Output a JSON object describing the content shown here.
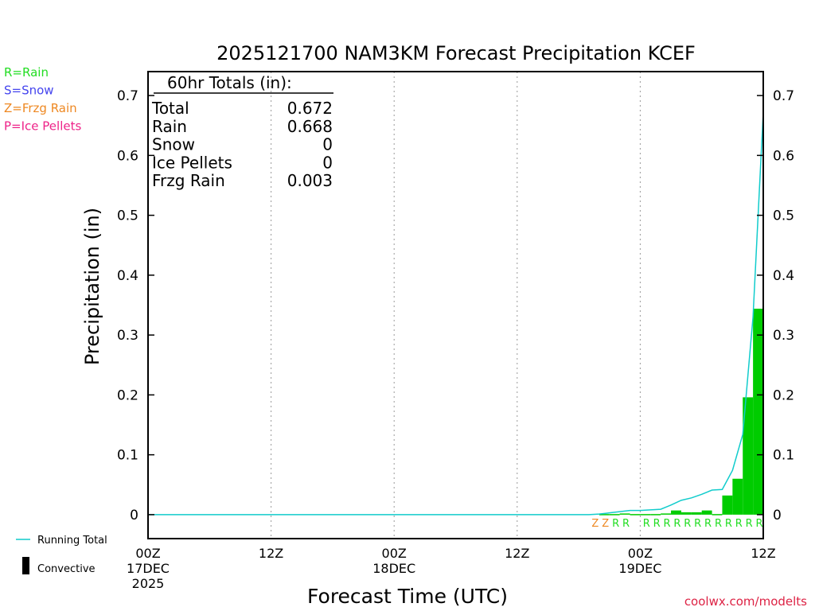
{
  "chart_data": {
    "type": "bar",
    "title": "2025121700 NAM3KM Forecast Precipitation KCEF",
    "xlabel": "Forecast Time (UTC)",
    "ylabel": "Precipitation (in)",
    "ylim": [
      -0.04,
      0.74
    ],
    "xlim": [
      0,
      60
    ],
    "yticks": [
      0,
      0.1,
      0.2,
      0.3,
      0.4,
      0.5,
      0.6,
      0.7
    ],
    "ytick_labels": [
      "0",
      "0.1",
      "0.2",
      "0.3",
      "0.4",
      "0.5",
      "0.6",
      "0.7"
    ],
    "xticks": [
      {
        "hour": 0,
        "label": "00Z",
        "sub": "17DEC",
        "sub2": "2025"
      },
      {
        "hour": 12,
        "label": "12Z",
        "sub": "",
        "sub2": ""
      },
      {
        "hour": 24,
        "label": "00Z",
        "sub": "18DEC",
        "sub2": ""
      },
      {
        "hour": 36,
        "label": "12Z",
        "sub": "",
        "sub2": ""
      },
      {
        "hour": 48,
        "label": "00Z",
        "sub": "19DEC",
        "sub2": ""
      },
      {
        "hour": 60,
        "label": "12Z",
        "sub": "",
        "sub2": ""
      }
    ],
    "totals_box": {
      "heading": "60hr Totals (in):",
      "rows": [
        {
          "label": "Total",
          "value": "0.672"
        },
        {
          "label": "Rain",
          "value": "0.668"
        },
        {
          "label": "Snow",
          "value": "0"
        },
        {
          "label": "Ice Pellets",
          "value": "0"
        },
        {
          "label": "Frzg Rain",
          "value": "0.003"
        }
      ]
    },
    "type_legend": [
      {
        "label": "R=Rain",
        "color": "#22dd22"
      },
      {
        "label": "S=Snow",
        "color": "#4444ee"
      },
      {
        "label": "Z=Frzg Rain",
        "color": "#ee8822"
      },
      {
        "label": "P=Ice Pellets",
        "color": "#ee2288"
      }
    ],
    "line_legend": {
      "running_total": "Running Total",
      "convective": "Convective"
    },
    "bar_color": "#00cc00",
    "convective_color": "#000000",
    "line_color": "#11cccc",
    "bars": [
      {
        "x": 44,
        "value": 0.001
      },
      {
        "x": 45,
        "value": 0.001
      },
      {
        "x": 46,
        "value": 0.002
      },
      {
        "x": 47,
        "value": 0.001
      },
      {
        "x": 48,
        "value": 0.001
      },
      {
        "x": 49,
        "value": 0.001
      },
      {
        "x": 50,
        "value": 0.002
      },
      {
        "x": 51,
        "value": 0.007
      },
      {
        "x": 52,
        "value": 0.004
      },
      {
        "x": 53,
        "value": 0.004
      },
      {
        "x": 54,
        "value": 0.007
      },
      {
        "x": 55,
        "value": 0.001
      },
      {
        "x": 56,
        "value": 0.032
      },
      {
        "x": 57,
        "value": 0.06
      },
      {
        "x": 58,
        "value": 0.196
      },
      {
        "x": 59,
        "value": 0.344
      }
    ],
    "running_total": [
      {
        "x": 0,
        "y": 0
      },
      {
        "x": 43,
        "y": 0
      },
      {
        "x": 44,
        "y": 0.001
      },
      {
        "x": 45,
        "y": 0.003
      },
      {
        "x": 46,
        "y": 0.005
      },
      {
        "x": 47,
        "y": 0.007
      },
      {
        "x": 48,
        "y": 0.007
      },
      {
        "x": 49,
        "y": 0.008
      },
      {
        "x": 50,
        "y": 0.009
      },
      {
        "x": 51,
        "y": 0.016
      },
      {
        "x": 52,
        "y": 0.024
      },
      {
        "x": 53,
        "y": 0.028
      },
      {
        "x": 54,
        "y": 0.034
      },
      {
        "x": 55,
        "y": 0.041
      },
      {
        "x": 56,
        "y": 0.042
      },
      {
        "x": 57,
        "y": 0.074
      },
      {
        "x": 58,
        "y": 0.134
      },
      {
        "x": 59,
        "y": 0.33
      },
      {
        "x": 60,
        "y": 0.672
      }
    ],
    "precip_type_markers": [
      {
        "x": 44,
        "code": "Z"
      },
      {
        "x": 45,
        "code": "Z"
      },
      {
        "x": 46,
        "code": "R"
      },
      {
        "x": 47,
        "code": "R"
      },
      {
        "x": 49,
        "code": "R"
      },
      {
        "x": 50,
        "code": "R"
      },
      {
        "x": 51,
        "code": "R"
      },
      {
        "x": 52,
        "code": "R"
      },
      {
        "x": 53,
        "code": "R"
      },
      {
        "x": 54,
        "code": "R"
      },
      {
        "x": 55,
        "code": "R"
      },
      {
        "x": 56,
        "code": "R"
      },
      {
        "x": 57,
        "code": "R"
      },
      {
        "x": 58,
        "code": "R"
      },
      {
        "x": 59,
        "code": "R"
      },
      {
        "x": 60,
        "code": "R"
      }
    ]
  },
  "footer": {
    "credit": "coolwx.com/modelts"
  }
}
